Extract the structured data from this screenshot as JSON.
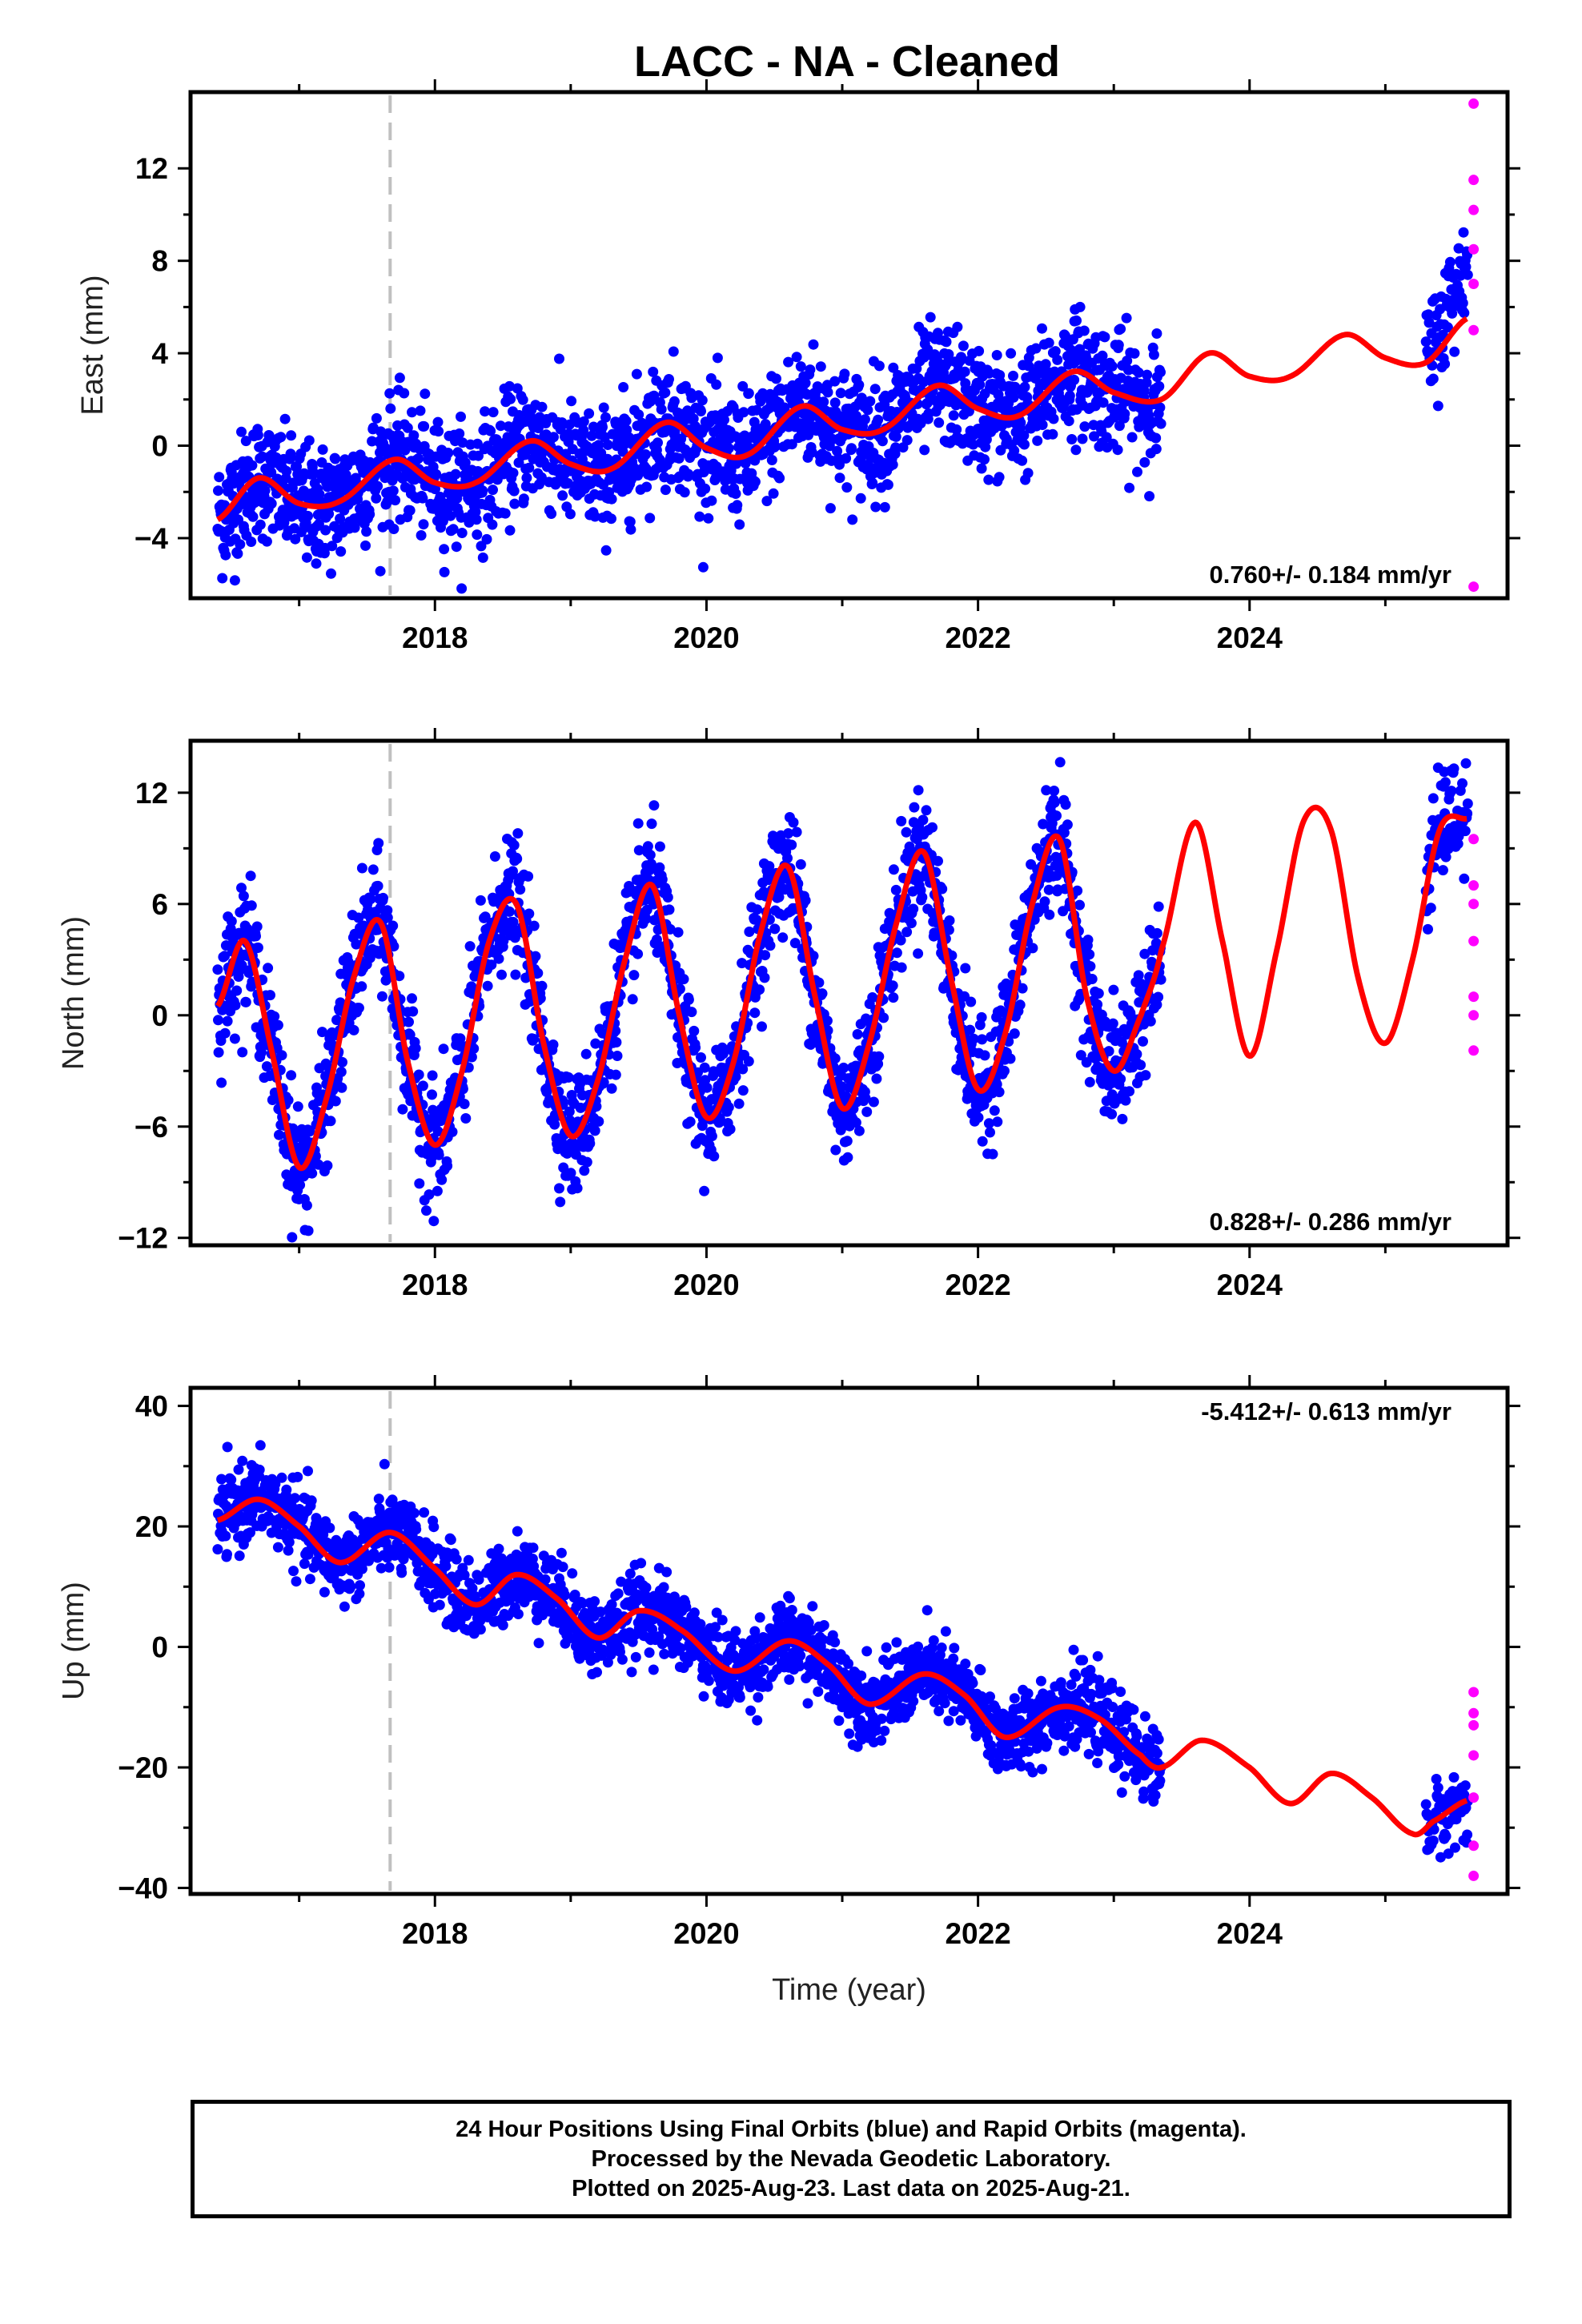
{
  "title": "LACC  - NA - Cleaned",
  "colors": {
    "final_orbits": "#0000ff",
    "rapid_orbits": "#ff00ff",
    "model": "#ff0000",
    "equipment_change": "#c0c0c0"
  },
  "footer": {
    "line1": "24 Hour Positions Using Final Orbits (blue) and Rapid Orbits (magenta).",
    "line2": "Processed by the Nevada Geodetic Laboratory.",
    "line3": "Plotted on 2025-Aug-23. Last data on 2025-Aug-21."
  },
  "chart_data": [
    {
      "type": "scatter",
      "ylabel": "East (mm)",
      "xlabel": "",
      "xlim": [
        2016.2,
        2025.9
      ],
      "ylim": [
        -6.6,
        15.3
      ],
      "x_ticks": [
        2018,
        2020,
        2022,
        2024
      ],
      "y_ticks": [
        -4,
        0,
        4,
        8,
        12
      ],
      "rate_label": "0.760+/- 0.184 mm/yr",
      "equipment_change_year": 2017.67,
      "data_span": [
        2016.4,
        2023.35
      ],
      "rapid_span": [
        2025.3,
        2025.65
      ],
      "model": {
        "x": [
          2016.4,
          2016.7,
          2017.0,
          2017.3,
          2017.7,
          2018.0,
          2018.3,
          2018.7,
          2019.0,
          2019.3,
          2019.7,
          2020.0,
          2020.3,
          2020.7,
          2021.0,
          2021.3,
          2021.7,
          2022.0,
          2022.3,
          2022.7,
          2023.0,
          2023.35,
          2023.7,
          2024.0,
          2024.3,
          2024.7,
          2025.0,
          2025.3,
          2025.6
        ],
        "y": [
          -3.2,
          -1.4,
          -2.5,
          -2.4,
          -0.6,
          -1.6,
          -1.6,
          0.2,
          -0.8,
          -1.0,
          1.0,
          -0.1,
          -0.4,
          1.7,
          0.7,
          0.7,
          2.6,
          1.6,
          1.3,
          3.2,
          2.3,
          2.0,
          4.0,
          3.0,
          3.0,
          4.8,
          3.8,
          3.6,
          5.5
        ]
      },
      "final_trend": [
        [
          2016.4,
          -2.4
        ],
        [
          2017.3,
          -2.0
        ],
        [
          2018.0,
          -1.5
        ],
        [
          2019.0,
          -0.6
        ],
        [
          2020.0,
          0.0
        ],
        [
          2021.0,
          0.8
        ],
        [
          2021.7,
          2.0
        ],
        [
          2022.0,
          2.4
        ],
        [
          2022.7,
          3.0
        ],
        [
          2023.35,
          2.2
        ],
        [
          2025.3,
          4.0
        ],
        [
          2025.55,
          7.0
        ]
      ],
      "final_scatter": 1.3,
      "rapid_points": [
        [
          2025.65,
          14.8
        ],
        [
          2025.65,
          11.5
        ],
        [
          2025.65,
          10.2
        ],
        [
          2025.65,
          8.5
        ],
        [
          2025.65,
          7.0
        ],
        [
          2025.65,
          5.0
        ],
        [
          2025.65,
          -6.1
        ]
      ]
    },
    {
      "type": "scatter",
      "ylabel": "North (mm)",
      "xlabel": "",
      "xlim": [
        2016.2,
        2025.9
      ],
      "ylim": [
        -12.4,
        14.8
      ],
      "x_ticks": [
        2018,
        2020,
        2022,
        2024
      ],
      "y_ticks": [
        -12,
        -6,
        0,
        6,
        12
      ],
      "rate_label": "0.828+/- 0.286 mm/yr",
      "equipment_change_year": 2017.67,
      "data_span": [
        2016.4,
        2023.35
      ],
      "rapid_span": [
        2025.3,
        2025.65
      ],
      "model": {
        "x": [
          2016.4,
          2016.6,
          2016.8,
          2017.0,
          2017.2,
          2017.4,
          2017.6,
          2017.8,
          2018.0,
          2018.2,
          2018.4,
          2018.6,
          2018.8,
          2019.0,
          2019.2,
          2019.4,
          2019.6,
          2019.8,
          2020.0,
          2020.2,
          2020.4,
          2020.6,
          2020.8,
          2021.0,
          2021.2,
          2021.4,
          2021.6,
          2021.8,
          2022.0,
          2022.2,
          2022.4,
          2022.6,
          2022.8,
          2023.0,
          2023.2,
          2023.35,
          2023.6,
          2023.8,
          2024.0,
          2024.2,
          2024.4,
          2024.6,
          2024.8,
          2025.0,
          2025.2,
          2025.4,
          2025.6
        ],
        "y": [
          0.5,
          4.0,
          -2.0,
          -8.2,
          -4.5,
          2.0,
          5.0,
          -2.5,
          -7.0,
          -3.0,
          4.0,
          6.0,
          -1.5,
          -6.5,
          -3.5,
          3.0,
          7.0,
          0.0,
          -5.5,
          -2.5,
          4.5,
          8.0,
          1.0,
          -5.0,
          -1.5,
          5.0,
          8.8,
          2.0,
          -4.0,
          -1.0,
          6.0,
          9.5,
          1.0,
          -3.0,
          0.0,
          3.5,
          10.4,
          4.0,
          -2.2,
          3.5,
          10.5,
          10.0,
          2.0,
          -1.5,
          3.0,
          10.0,
          10.6
        ]
      },
      "final_scatter": 1.6,
      "rapid_points": [
        [
          2025.65,
          9.5
        ],
        [
          2025.65,
          7.0
        ],
        [
          2025.65,
          6.0
        ],
        [
          2025.65,
          4.0
        ],
        [
          2025.65,
          1.0
        ],
        [
          2025.65,
          0.0
        ],
        [
          2025.65,
          -1.9
        ]
      ]
    },
    {
      "type": "scatter",
      "ylabel": "Up (mm)",
      "xlabel": "Time (year)",
      "xlim": [
        2016.2,
        2025.9
      ],
      "ylim": [
        -41,
        43
      ],
      "x_ticks": [
        2018,
        2020,
        2022,
        2024
      ],
      "y_ticks": [
        -40,
        -20,
        0,
        20,
        40
      ],
      "rate_label": "-5.412+/- 0.613 mm/yr",
      "equipment_change_year": 2017.67,
      "data_span": [
        2016.4,
        2023.35
      ],
      "rapid_span": [
        2025.3,
        2025.65
      ],
      "model": {
        "x": [
          2016.4,
          2016.7,
          2017.0,
          2017.3,
          2017.67,
          2018.0,
          2018.3,
          2018.6,
          2018.9,
          2019.2,
          2019.5,
          2019.8,
          2020.2,
          2020.6,
          2020.9,
          2021.2,
          2021.6,
          2021.9,
          2022.2,
          2022.6,
          2022.9,
          2023.2,
          2023.35,
          2023.65,
          2024.0,
          2024.3,
          2024.6,
          2024.9,
          2025.2,
          2025.35,
          2025.6
        ],
        "y": [
          21.0,
          24.5,
          20.0,
          14.0,
          19.0,
          13.0,
          7.0,
          12.0,
          8.0,
          1.5,
          6.0,
          3.0,
          -4.0,
          1.0,
          -3.0,
          -9.5,
          -4.5,
          -8.0,
          -15.0,
          -10.0,
          -12.0,
          -18.0,
          -20.0,
          -15.5,
          -20.0,
          -26.0,
          -21.0,
          -25.0,
          -31.0,
          -29.0,
          -25.5
        ]
      },
      "final_scatter": 3.2,
      "rapid_points": [
        [
          2025.65,
          -7.5
        ],
        [
          2025.65,
          -11.0
        ],
        [
          2025.65,
          -13.0
        ],
        [
          2025.65,
          -18.0
        ],
        [
          2025.65,
          -25.0
        ],
        [
          2025.65,
          -33.0
        ],
        [
          2025.65,
          -38.0
        ]
      ]
    }
  ]
}
